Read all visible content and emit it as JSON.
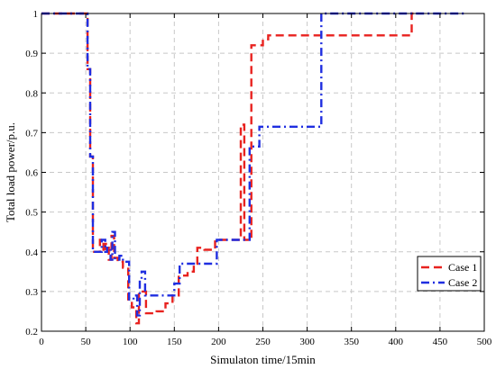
{
  "chart_data": {
    "type": "line",
    "title": "",
    "xlabel": "Simulaton time/15min",
    "ylabel": "Total load power/p.u.",
    "xlim": [
      0,
      500
    ],
    "ylim": [
      0.2,
      1.0
    ],
    "x_ticks": [
      0,
      50,
      100,
      150,
      200,
      250,
      300,
      350,
      400,
      450,
      500
    ],
    "y_ticks": [
      0.2,
      0.3,
      0.4,
      0.5,
      0.6,
      0.7,
      0.8,
      0.9,
      1.0
    ],
    "x_tick_labels": [
      "0",
      "50",
      "100",
      "150",
      "200",
      "250",
      "300",
      "350",
      "400",
      "450",
      "500"
    ],
    "y_tick_labels": [
      "0.2",
      "0.3",
      "0.4",
      "0.5",
      "0.6",
      "0.7",
      "0.8",
      "0.9",
      "1"
    ],
    "grid": true,
    "legend_position": "lower-right",
    "series": [
      {
        "name": "Case 1",
        "color": "#e8221f",
        "dash": "dashed",
        "points": [
          [
            0,
            1.0
          ],
          [
            52,
            1.0
          ],
          [
            52,
            0.86
          ],
          [
            55,
            0.86
          ],
          [
            55,
            0.64
          ],
          [
            58,
            0.64
          ],
          [
            58,
            0.4
          ],
          [
            66,
            0.4
          ],
          [
            66,
            0.43
          ],
          [
            70,
            0.43
          ],
          [
            70,
            0.4
          ],
          [
            72,
            0.4
          ],
          [
            72,
            0.42
          ],
          [
            76,
            0.42
          ],
          [
            76,
            0.38
          ],
          [
            79,
            0.38
          ],
          [
            79,
            0.44
          ],
          [
            82,
            0.44
          ],
          [
            82,
            0.385
          ],
          [
            86,
            0.385
          ],
          [
            86,
            0.375
          ],
          [
            92,
            0.375
          ],
          [
            92,
            0.36
          ],
          [
            98,
            0.36
          ],
          [
            98,
            0.28
          ],
          [
            102,
            0.28
          ],
          [
            102,
            0.26
          ],
          [
            107,
            0.26
          ],
          [
            107,
            0.22
          ],
          [
            110,
            0.22
          ],
          [
            110,
            0.3
          ],
          [
            118,
            0.3
          ],
          [
            118,
            0.245
          ],
          [
            130,
            0.245
          ],
          [
            130,
            0.25
          ],
          [
            140,
            0.25
          ],
          [
            140,
            0.27
          ],
          [
            148,
            0.27
          ],
          [
            148,
            0.29
          ],
          [
            155,
            0.29
          ],
          [
            155,
            0.34
          ],
          [
            165,
            0.34
          ],
          [
            165,
            0.35
          ],
          [
            172,
            0.35
          ],
          [
            172,
            0.37
          ],
          [
            176,
            0.37
          ],
          [
            176,
            0.41
          ],
          [
            184,
            0.41
          ],
          [
            184,
            0.405
          ],
          [
            196,
            0.405
          ],
          [
            196,
            0.43
          ],
          [
            225,
            0.43
          ],
          [
            225,
            0.72
          ],
          [
            229,
            0.72
          ],
          [
            229,
            0.43
          ],
          [
            237,
            0.43
          ],
          [
            237,
            0.92
          ],
          [
            250,
            0.92
          ],
          [
            250,
            0.935
          ],
          [
            256,
            0.935
          ],
          [
            256,
            0.945
          ],
          [
            418,
            0.945
          ],
          [
            418,
            1.0
          ],
          [
            422,
            1.0
          ]
        ]
      },
      {
        "name": "Case 2",
        "color": "#1f2ee0",
        "dash": "dashdot",
        "points": [
          [
            0,
            1.0
          ],
          [
            52,
            1.0
          ],
          [
            52,
            0.86
          ],
          [
            55,
            0.86
          ],
          [
            55,
            0.64
          ],
          [
            58,
            0.64
          ],
          [
            58,
            0.4
          ],
          [
            68,
            0.4
          ],
          [
            68,
            0.43
          ],
          [
            72,
            0.43
          ],
          [
            72,
            0.4
          ],
          [
            74,
            0.4
          ],
          [
            74,
            0.41
          ],
          [
            78,
            0.41
          ],
          [
            78,
            0.38
          ],
          [
            80,
            0.38
          ],
          [
            80,
            0.45
          ],
          [
            83,
            0.45
          ],
          [
            83,
            0.38
          ],
          [
            88,
            0.38
          ],
          [
            88,
            0.39
          ],
          [
            92,
            0.39
          ],
          [
            92,
            0.375
          ],
          [
            99,
            0.375
          ],
          [
            99,
            0.28
          ],
          [
            104,
            0.28
          ],
          [
            104,
            0.29
          ],
          [
            108,
            0.29
          ],
          [
            108,
            0.24
          ],
          [
            111,
            0.24
          ],
          [
            111,
            0.33
          ],
          [
            113,
            0.33
          ],
          [
            113,
            0.35
          ],
          [
            117,
            0.35
          ],
          [
            117,
            0.29
          ],
          [
            150,
            0.29
          ],
          [
            150,
            0.32
          ],
          [
            156,
            0.32
          ],
          [
            156,
            0.37
          ],
          [
            198,
            0.37
          ],
          [
            198,
            0.43
          ],
          [
            235,
            0.43
          ],
          [
            235,
            0.665
          ],
          [
            246,
            0.665
          ],
          [
            246,
            0.715
          ],
          [
            316,
            0.715
          ],
          [
            316,
            1.0
          ],
          [
            478,
            1.0
          ]
        ]
      }
    ]
  }
}
